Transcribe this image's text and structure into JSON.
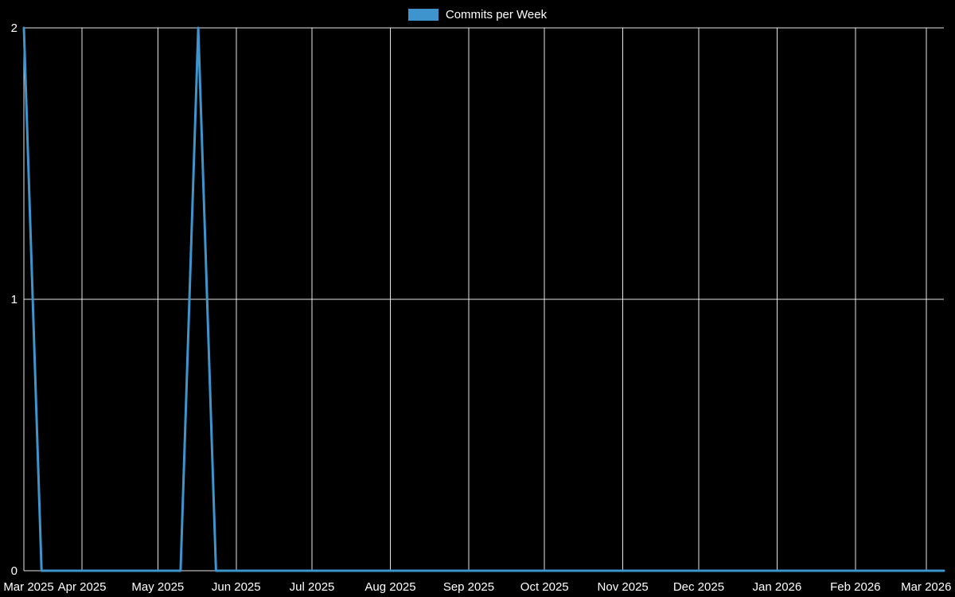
{
  "chart_data": {
    "type": "line",
    "legend": "Commits per Week",
    "series_name": "Commits per Week",
    "line_color": "#3e95cd",
    "background_color": "#000000",
    "grid_color": "#ffffff",
    "text_color": "#ffffff",
    "y_max": 2,
    "y_min": 0,
    "y_ticks": [
      0,
      1,
      2
    ],
    "x_domain": [
      "2025-03-09",
      "2026-03-08"
    ],
    "x_ticks": [
      {
        "label": "Mar 2025",
        "date": "2025-03-09"
      },
      {
        "label": "Apr 2025",
        "date": "2025-04-01"
      },
      {
        "label": "May 2025",
        "date": "2025-05-01"
      },
      {
        "label": "Jun 2025",
        "date": "2025-06-01"
      },
      {
        "label": "Jul 2025",
        "date": "2025-07-01"
      },
      {
        "label": "Aug 2025",
        "date": "2025-08-01"
      },
      {
        "label": "Sep 2025",
        "date": "2025-09-01"
      },
      {
        "label": "Oct 2025",
        "date": "2025-10-01"
      },
      {
        "label": "Nov 2025",
        "date": "2025-11-01"
      },
      {
        "label": "Dec 2025",
        "date": "2025-12-01"
      },
      {
        "label": "Jan 2026",
        "date": "2026-01-01"
      },
      {
        "label": "Feb 2026",
        "date": "2026-02-01"
      },
      {
        "label": "Mar 2026",
        "date": "2026-03-01"
      }
    ],
    "points": [
      {
        "date": "2025-03-09",
        "value": 2
      },
      {
        "date": "2025-03-16",
        "value": 0
      },
      {
        "date": "2025-05-10",
        "value": 0
      },
      {
        "date": "2025-05-17",
        "value": 2
      },
      {
        "date": "2025-05-24",
        "value": 0
      },
      {
        "date": "2026-03-08",
        "value": 0
      }
    ],
    "grid": true,
    "legend_position": "top-center"
  }
}
